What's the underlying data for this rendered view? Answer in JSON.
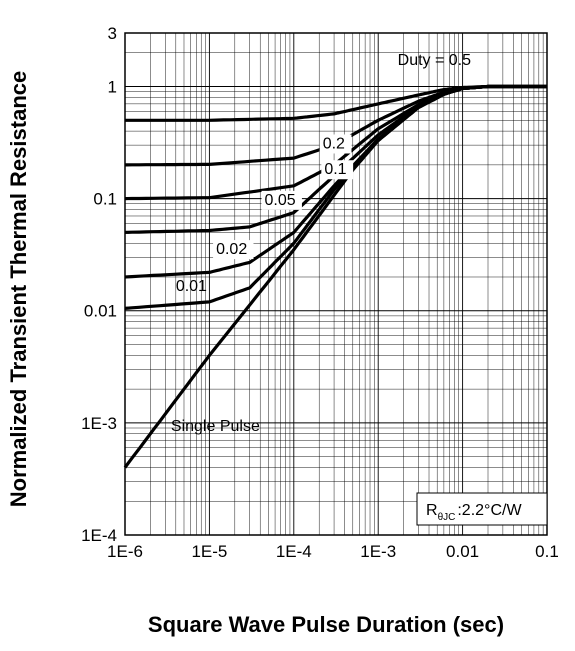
{
  "chart_data": {
    "type": "line",
    "title": "",
    "xlabel": "Square Wave Pulse Duration (sec)",
    "ylabel": "Normalized Transient Thermal Resistance",
    "x_scale": "log",
    "y_scale": "log",
    "xlim": [
      1e-06,
      0.1
    ],
    "ylim": [
      0.0001,
      3
    ],
    "grid": true,
    "x_tick_labels": [
      "1E-6",
      "1E-5",
      "1E-4",
      "1E-3",
      "0.01",
      "0.1"
    ],
    "y_tick_labels": [
      "1E-4",
      "1E-3",
      "0.01",
      "0.1",
      "1",
      "3"
    ],
    "annotation": {
      "symbol": "R",
      "subscript": "θJC",
      "value_text": ":2.2°C/W"
    },
    "series": [
      {
        "name": "Single Pulse",
        "label": "Single Pulse",
        "x": [
          1e-06,
          1e-05,
          0.0001,
          0.0005,
          0.001,
          0.003,
          0.006,
          0.01,
          0.02,
          0.1
        ],
        "y": [
          0.0004,
          0.004,
          0.035,
          0.18,
          0.33,
          0.65,
          0.85,
          0.96,
          1.0,
          1.0
        ]
      },
      {
        "name": "0.01",
        "label": "0.01",
        "x": [
          1e-06,
          1e-05,
          3e-05,
          0.0001,
          0.0003,
          0.001,
          0.003,
          0.006,
          0.01,
          0.02,
          0.1
        ],
        "y": [
          0.0105,
          0.012,
          0.016,
          0.04,
          0.12,
          0.33,
          0.65,
          0.85,
          0.96,
          1.0,
          1.0
        ]
      },
      {
        "name": "0.02",
        "label": "0.02",
        "x": [
          1e-06,
          1e-05,
          3e-05,
          0.0001,
          0.0003,
          0.001,
          0.003,
          0.006,
          0.01,
          0.02,
          0.1
        ],
        "y": [
          0.02,
          0.022,
          0.027,
          0.05,
          0.13,
          0.34,
          0.66,
          0.86,
          0.96,
          1.0,
          1.0
        ]
      },
      {
        "name": "0.05",
        "label": "0.05",
        "x": [
          1e-06,
          1e-05,
          3e-05,
          0.0001,
          0.0003,
          0.001,
          0.003,
          0.006,
          0.01,
          0.02,
          0.1
        ],
        "y": [
          0.05,
          0.052,
          0.056,
          0.075,
          0.16,
          0.37,
          0.67,
          0.86,
          0.96,
          1.0,
          1.0
        ]
      },
      {
        "name": "0.1",
        "label": "0.1",
        "x": [
          1e-06,
          1e-05,
          0.0001,
          0.0003,
          0.001,
          0.003,
          0.006,
          0.01,
          0.02,
          0.1
        ],
        "y": [
          0.1,
          0.102,
          0.13,
          0.2,
          0.42,
          0.69,
          0.87,
          0.96,
          1.0,
          1.0
        ]
      },
      {
        "name": "0.2",
        "label": "0.2",
        "x": [
          1e-06,
          1e-05,
          0.0001,
          0.0003,
          0.001,
          0.003,
          0.006,
          0.01,
          0.02,
          0.1
        ],
        "y": [
          0.2,
          0.202,
          0.23,
          0.3,
          0.5,
          0.74,
          0.89,
          0.97,
          1.0,
          1.0
        ]
      },
      {
        "name": "Duty = 0.5",
        "label": "Duty = 0.5",
        "x": [
          1e-06,
          1e-05,
          0.0001,
          0.0003,
          0.001,
          0.003,
          0.006,
          0.01,
          0.02,
          0.1
        ],
        "y": [
          0.5,
          0.5,
          0.52,
          0.57,
          0.7,
          0.84,
          0.94,
          0.98,
          1.0,
          1.0
        ]
      }
    ]
  }
}
